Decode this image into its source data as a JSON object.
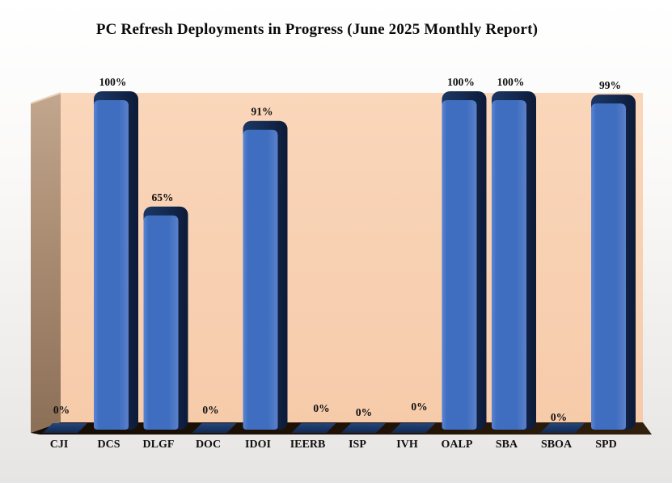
{
  "page": {
    "background": "#EFEDEB"
  },
  "chart_data": {
    "type": "bar",
    "style": "3d-rounded-bars",
    "title": "PC Refresh Deployments in Progress (June 2025 Monthly Report)",
    "categories": [
      "CJI",
      "DCS",
      "DLGF",
      "DOC",
      "IDOI",
      "IEERB",
      "ISP",
      "IVH",
      "OALP",
      "SBA",
      "SBOA",
      "SPD"
    ],
    "values": [
      0,
      100,
      65,
      0,
      91,
      0,
      0,
      0,
      100,
      100,
      0,
      99
    ],
    "data_labels": [
      "0%",
      "100%",
      "65%",
      "0%",
      "91%",
      "0%",
      "0%",
      "0%",
      "100%",
      "100%",
      "0%",
      "99%"
    ],
    "xlabel": "",
    "ylabel": "",
    "ylim": [
      0,
      100
    ],
    "grid": false,
    "legend": false,
    "colors": {
      "bar_front": "#3F6EC0",
      "bar_highlight": "#5C85D4",
      "bar_side_dark": "#152C52",
      "zero_marker": "#1D3A69",
      "back_wall": "#F8CFB0",
      "left_wall": "#A98C72",
      "floor": "#1F1206",
      "label_text": "#0F0F0F",
      "title_text": "#0A0A0A"
    }
  }
}
